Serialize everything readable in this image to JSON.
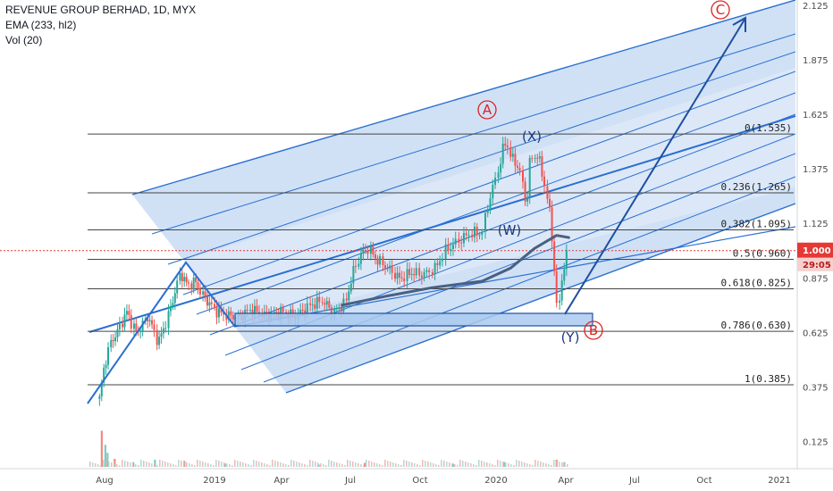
{
  "header": {
    "symbol": "REVENUE GROUP BERHAD, 1D, MYX",
    "indicator1": "EMA (233, hl2)",
    "indicator2": "Vol (20)"
  },
  "price_badge": {
    "price": "1.000",
    "timer": "29:05",
    "color": "#e53935"
  },
  "colors": {
    "channel_line": "#2a6fd1",
    "channel_fill": "#a9c9ef",
    "fib_line": "#444444",
    "ema": "#4a6080",
    "arrow": "#1e4fa0",
    "circle": "#e02020",
    "candle_up": "#26a69a",
    "candle_down": "#ef5350"
  },
  "chart_data": {
    "type": "candlestick",
    "y_axis": {
      "min": 0.0,
      "max": 2.125,
      "ticks": [
        "2.125",
        "1.875",
        "1.625",
        "1.375",
        "1.125",
        "0.875",
        "0.625",
        "0.375",
        "0.125"
      ]
    },
    "x_axis": {
      "ticks": [
        "Aug",
        "2019",
        "Apr",
        "Jul",
        "Oct",
        "2020",
        "Apr",
        "Jul",
        "Oct",
        "2021"
      ]
    },
    "fib_levels": [
      {
        "label": "0(1.535)",
        "value": 1.535
      },
      {
        "label": "0.236(1.265)",
        "value": 1.265
      },
      {
        "label": "0.382(1.095)",
        "value": 1.095
      },
      {
        "label": "0.5(0.960)",
        "value": 0.96
      },
      {
        "label": "0.618(0.825)",
        "value": 0.825
      },
      {
        "label": "0.786(0.630)",
        "value": 0.63
      },
      {
        "label": "1(0.385)",
        "value": 0.385
      }
    ],
    "waves": [
      {
        "label": "A",
        "circled": true
      },
      {
        "label": "(X)",
        "circled": false
      },
      {
        "label": "(W)",
        "circled": false
      },
      {
        "label": "(Y)",
        "circled": false
      },
      {
        "label": "B",
        "circled": true
      },
      {
        "label": "C",
        "circled": true
      }
    ],
    "price_path": [
      [
        "2018-07-25",
        0.32
      ],
      [
        "2018-08-01",
        0.47
      ],
      [
        "2018-08-10",
        0.58
      ],
      [
        "2018-08-20",
        0.63
      ],
      [
        "2018-09-01",
        0.72
      ],
      [
        "2018-09-15",
        0.62
      ],
      [
        "2018-10-01",
        0.7
      ],
      [
        "2018-10-15",
        0.58
      ],
      [
        "2018-10-25",
        0.66
      ],
      [
        "2018-11-05",
        0.78
      ],
      [
        "2018-11-15",
        0.9
      ],
      [
        "2018-11-25",
        0.84
      ],
      [
        "2018-12-05",
        0.86
      ],
      [
        "2018-12-15",
        0.8
      ],
      [
        "2018-12-25",
        0.76
      ],
      [
        "2019-01-05",
        0.72
      ],
      [
        "2019-01-20",
        0.7
      ],
      [
        "2019-02-05",
        0.7
      ],
      [
        "2019-02-20",
        0.73
      ],
      [
        "2019-03-10",
        0.7
      ],
      [
        "2019-04-01",
        0.72
      ],
      [
        "2019-04-20",
        0.7
      ],
      [
        "2019-05-10",
        0.75
      ],
      [
        "2019-05-25",
        0.77
      ],
      [
        "2019-06-10",
        0.72
      ],
      [
        "2019-06-25",
        0.76
      ],
      [
        "2019-07-05",
        0.9
      ],
      [
        "2019-07-15",
        0.98
      ],
      [
        "2019-07-25",
        1.01
      ],
      [
        "2019-08-05",
        0.96
      ],
      [
        "2019-08-20",
        0.92
      ],
      [
        "2019-09-05",
        0.87
      ],
      [
        "2019-09-20",
        0.9
      ],
      [
        "2019-10-05",
        0.89
      ],
      [
        "2019-10-20",
        0.92
      ],
      [
        "2019-11-01",
        1.0
      ],
      [
        "2019-11-15",
        1.04
      ],
      [
        "2019-12-01",
        1.08
      ],
      [
        "2019-12-15",
        1.08
      ],
      [
        "2019-12-25",
        1.25
      ],
      [
        "2020-01-03",
        1.35
      ],
      [
        "2020-01-10",
        1.46
      ],
      [
        "2020-01-15",
        1.5
      ],
      [
        "2020-01-22",
        1.42
      ],
      [
        "2020-02-01",
        1.38
      ],
      [
        "2020-02-10",
        1.2
      ],
      [
        "2020-02-15",
        1.42
      ],
      [
        "2020-02-25",
        1.44
      ],
      [
        "2020-03-05",
        1.3
      ],
      [
        "2020-03-12",
        1.16
      ],
      [
        "2020-03-18",
        0.9
      ],
      [
        "2020-03-22",
        0.68
      ],
      [
        "2020-03-26",
        0.85
      ],
      [
        "2020-04-01",
        0.96
      ],
      [
        "2020-04-05",
        1.0
      ]
    ],
    "ema_233": [
      [
        "2019-06-20",
        0.75
      ],
      [
        "2019-08-15",
        0.79
      ],
      [
        "2019-10-15",
        0.83
      ],
      [
        "2019-12-15",
        0.86
      ],
      [
        "2020-01-20",
        0.92
      ],
      [
        "2020-02-20",
        1.01
      ],
      [
        "2020-03-20",
        1.07
      ],
      [
        "2020-04-05",
        1.06
      ]
    ],
    "volume": [
      [
        "2018-07-28",
        0.9
      ],
      [
        "2018-08-02",
        0.55
      ],
      [
        "2018-08-05",
        0.35
      ],
      [
        "2018-08-15",
        0.2
      ],
      [
        "2018-09-10",
        0.12
      ],
      [
        "2018-10-10",
        0.18
      ],
      [
        "2018-11-20",
        0.15
      ],
      [
        "2019-01-15",
        0.08
      ],
      [
        "2019-05-20",
        0.06
      ],
      [
        "2019-07-20",
        0.1
      ],
      [
        "2019-11-10",
        0.08
      ],
      [
        "2020-01-12",
        0.12
      ],
      [
        "2020-03-20",
        0.18
      ],
      [
        "2020-03-30",
        0.12
      ]
    ],
    "arrow_target": {
      "label": "C",
      "date": "2020-11-15",
      "value": 2.05
    }
  }
}
